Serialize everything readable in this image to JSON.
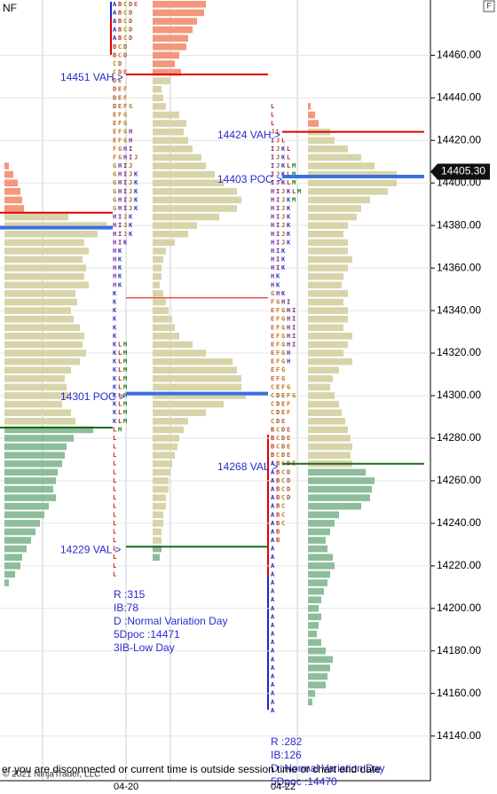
{
  "instrument": "NF",
  "price_axis": {
    "ylim": [
      14119,
      14486
    ],
    "yticks": [
      {
        "value": 14140,
        "label": "14140.00"
      },
      {
        "value": 14160,
        "label": "14160.00"
      },
      {
        "value": 14180,
        "label": "14180.00"
      },
      {
        "value": 14200,
        "label": "14200.00"
      },
      {
        "value": 14220,
        "label": "14220.00"
      },
      {
        "value": 14240,
        "label": "14240.00"
      },
      {
        "value": 14260,
        "label": "14260.00"
      },
      {
        "value": 14280,
        "label": "14280.00"
      },
      {
        "value": 14300,
        "label": "14300.00"
      },
      {
        "value": 14320,
        "label": "14320.00"
      },
      {
        "value": 14340,
        "label": "14340.00"
      },
      {
        "value": 14360,
        "label": "14360.00"
      },
      {
        "value": 14380,
        "label": "14380.00"
      },
      {
        "value": 14400,
        "label": "14400.00"
      },
      {
        "value": 14420,
        "label": "14420.00"
      },
      {
        "value": 14440,
        "label": "14440.00"
      },
      {
        "value": 14460,
        "label": "14460.00"
      }
    ],
    "current_price": {
      "value": 14405.3,
      "label": "14405.30"
    }
  },
  "profiles": [
    {
      "volume": {
        "prices": [
          14408,
          14404,
          14400,
          14396,
          14392,
          14388,
          14384,
          14380,
          14376,
          14372,
          14368,
          14364,
          14360,
          14356,
          14352,
          14348,
          14344,
          14340,
          14336,
          14332,
          14328,
          14324,
          14320,
          14316,
          14312,
          14308,
          14304,
          14300,
          14296,
          14292,
          14288,
          14284,
          14280,
          14276,
          14272,
          14268,
          14264,
          14260,
          14256,
          14252,
          14248,
          14244,
          14240,
          14236,
          14232,
          14228,
          14224,
          14220,
          14216,
          14212
        ],
        "values": [
          5,
          10,
          15,
          18,
          20,
          22,
          72,
          115,
          105,
          90,
          95,
          88,
          92,
          90,
          95,
          80,
          82,
          75,
          78,
          85,
          90,
          88,
          92,
          85,
          75,
          68,
          70,
          72,
          65,
          75,
          80,
          100,
          78,
          70,
          68,
          65,
          60,
          58,
          55,
          58,
          50,
          45,
          40,
          35,
          30,
          25,
          20,
          18,
          12,
          5
        ]
      },
      "levels": [
        {
          "price": 14386,
          "kind": "vah"
        },
        {
          "price": 14379,
          "kind": "poc"
        },
        {
          "price": 14285,
          "kind": "val"
        }
      ]
    },
    {
      "date": "04-20",
      "tpo": {
        "prices": [
          14484,
          14480,
          14476,
          14472,
          14468,
          14464,
          14460,
          14456,
          14452,
          14448,
          14444,
          14440,
          14436,
          14432,
          14428,
          14424,
          14420,
          14416,
          14412,
          14408,
          14404,
          14400,
          14396,
          14392,
          14388,
          14384,
          14380,
          14376,
          14372,
          14368,
          14364,
          14360,
          14356,
          14352,
          14348,
          14344,
          14340,
          14336,
          14332,
          14328,
          14324,
          14320,
          14316,
          14312,
          14308,
          14304,
          14300,
          14296,
          14292,
          14288,
          14284,
          14280,
          14276,
          14272,
          14268,
          14264,
          14260,
          14256,
          14252,
          14248,
          14244,
          14240,
          14236,
          14232,
          14228,
          14224,
          14220,
          14216
        ],
        "letters": [
          "ABCDE",
          "ABCD",
          "ABCD",
          "ABCD",
          "ABCD",
          "BCD",
          "BCD",
          "CD",
          "CDE",
          "DE",
          "DEF",
          "DEF",
          "DEFG",
          "EFG",
          "EFG",
          "EFGH",
          "EFGH",
          "FGHI",
          "FGHIJ",
          "GHIJ",
          "GHIJK",
          "GHIJK",
          "GHIJK",
          "GHIJK",
          "GHIJK",
          "HIJK",
          "HIJK",
          "HIJK",
          "HIK",
          "HK",
          "HK",
          "HK",
          "HK",
          "HK",
          "K",
          "K",
          "K",
          "K",
          "K",
          "K",
          "KLM",
          "KLM",
          "KLM",
          "KLM",
          "KLM",
          "KLM",
          "KLM",
          "KLM",
          "KLM",
          "KLM",
          "LM",
          "L",
          "L",
          "L",
          "L",
          "L",
          "L",
          "L",
          "L",
          "L",
          "L",
          "L",
          "L",
          "L",
          "L",
          "L",
          "L",
          "L"
        ]
      },
      "volume": {
        "prices": [
          14484,
          14480,
          14476,
          14472,
          14468,
          14464,
          14460,
          14456,
          14452,
          14448,
          14444,
          14440,
          14436,
          14432,
          14428,
          14424,
          14420,
          14416,
          14412,
          14408,
          14404,
          14400,
          14396,
          14392,
          14388,
          14384,
          14380,
          14376,
          14372,
          14368,
          14364,
          14360,
          14356,
          14352,
          14348,
          14344,
          14340,
          14336,
          14332,
          14328,
          14324,
          14320,
          14316,
          14312,
          14308,
          14304,
          14300,
          14296,
          14292,
          14288,
          14284,
          14280,
          14276,
          14272,
          14268,
          14264,
          14260,
          14256,
          14252,
          14248,
          14244,
          14240,
          14236,
          14232,
          14228,
          14224
        ],
        "values": [
          60,
          58,
          50,
          45,
          40,
          38,
          30,
          25,
          32,
          20,
          10,
          12,
          15,
          30,
          38,
          35,
          40,
          45,
          55,
          60,
          70,
          80,
          95,
          100,
          95,
          75,
          50,
          40,
          25,
          15,
          12,
          10,
          10,
          8,
          12,
          15,
          18,
          22,
          25,
          30,
          45,
          60,
          90,
          95,
          100,
          100,
          105,
          80,
          60,
          40,
          35,
          30,
          28,
          25,
          22,
          20,
          18,
          18,
          15,
          15,
          12,
          12,
          10,
          10,
          10,
          8
        ]
      },
      "levels": [
        {
          "label": "14451 VAH >",
          "price": 14451,
          "kind": "vah"
        },
        {
          "label": "14301 POC >",
          "price": 14301,
          "kind": "poc"
        },
        {
          "label": "14229 VAL >",
          "price": 14229,
          "kind": "val"
        },
        {
          "price": 14346,
          "kind": "ref"
        }
      ],
      "stats": [
        "R :315",
        "IB:78",
        "D :Normal Variation Day",
        "5Dpoc :14471",
        "3IB-Low Day"
      ]
    },
    {
      "date": "04-22",
      "tpo": {
        "prices": [
          14436,
          14432,
          14428,
          14424,
          14420,
          14416,
          14412,
          14408,
          14404,
          14400,
          14396,
          14392,
          14388,
          14384,
          14380,
          14376,
          14372,
          14368,
          14364,
          14360,
          14356,
          14352,
          14348,
          14344,
          14340,
          14336,
          14332,
          14328,
          14324,
          14320,
          14316,
          14312,
          14308,
          14304,
          14300,
          14296,
          14292,
          14288,
          14284,
          14280,
          14276,
          14272,
          14268,
          14264,
          14260,
          14256,
          14252,
          14248,
          14244,
          14240,
          14236,
          14232,
          14228,
          14224,
          14220,
          14216,
          14212,
          14208,
          14204,
          14200,
          14196,
          14192,
          14188,
          14184,
          14180,
          14176,
          14172,
          14168,
          14164,
          14160,
          14156,
          14152
        ],
        "letters": [
          "L",
          "L",
          "L",
          "JL",
          "IJL",
          "IJKL",
          "IJKL",
          "IJKLM",
          "IJKLM",
          "IJKLM",
          "HIJKLM",
          "HIJKM",
          "HIJK",
          "HIJK",
          "HIJK",
          "HIJK",
          "HIJK",
          "HIK",
          "HIK",
          "HIK",
          "HK",
          "HK",
          "GHK",
          "FGHI",
          "EFGHI",
          "EFGHI",
          "EFGHI",
          "EFGHI",
          "EFGHI",
          "EFGH",
          "EFGH",
          "EFG",
          "EFG",
          "CEFG",
          "CDEFG",
          "CDEF",
          "CDEF",
          "CDE",
          "BCDE",
          "BCDE",
          "BCDE",
          "BCDE",
          "ABCDE",
          "ABCD",
          "ABCD",
          "ABCD",
          "ABCD",
          "ABC",
          "ABC",
          "ABC",
          "AB",
          "AB",
          "A",
          "A",
          "A",
          "A",
          "A",
          "A",
          "A",
          "A",
          "A",
          "A",
          "A",
          "A",
          "A",
          "A",
          "A",
          "A",
          "A",
          "A",
          "A",
          "A"
        ]
      },
      "volume": {
        "prices": [
          14436,
          14432,
          14428,
          14424,
          14420,
          14416,
          14412,
          14408,
          14404,
          14400,
          14396,
          14392,
          14388,
          14384,
          14380,
          14376,
          14372,
          14368,
          14364,
          14360,
          14356,
          14352,
          14348,
          14344,
          14340,
          14336,
          14332,
          14328,
          14324,
          14320,
          14316,
          14312,
          14308,
          14304,
          14300,
          14296,
          14292,
          14288,
          14284,
          14280,
          14276,
          14272,
          14268,
          14264,
          14260,
          14256,
          14252,
          14248,
          14244,
          14240,
          14236,
          14232,
          14228,
          14224,
          14220,
          14216,
          14212,
          14208,
          14204,
          14200,
          14196,
          14192,
          14188,
          14184,
          14180,
          14176,
          14172,
          14168,
          14164,
          14160,
          14156
        ],
        "values": [
          3,
          8,
          12,
          25,
          30,
          45,
          60,
          75,
          100,
          100,
          90,
          70,
          60,
          55,
          45,
          40,
          45,
          45,
          50,
          45,
          40,
          38,
          45,
          40,
          45,
          45,
          40,
          50,
          45,
          40,
          50,
          35,
          28,
          25,
          30,
          35,
          38,
          42,
          45,
          48,
          50,
          48,
          50,
          65,
          75,
          72,
          70,
          60,
          35,
          30,
          25,
          20,
          22,
          28,
          30,
          25,
          22,
          18,
          15,
          12,
          15,
          12,
          10,
          15,
          20,
          28,
          25,
          22,
          20,
          8,
          5
        ]
      },
      "levels": [
        {
          "label": "14424 VAH >",
          "price": 14424,
          "kind": "vah"
        },
        {
          "label": "14403 POC >",
          "price": 14403,
          "kind": "poc"
        },
        {
          "label": "14268 VAL >",
          "price": 14268,
          "kind": "val"
        }
      ],
      "stats": [
        "R :282",
        "IB:126",
        "D :Normal Variation Day",
        "5Dpoc :14470"
      ]
    }
  ],
  "message": "er you are disconnected or current time is outside session time or chart end date",
  "copyright": "© 2021 NinjaTrader, LLC"
}
